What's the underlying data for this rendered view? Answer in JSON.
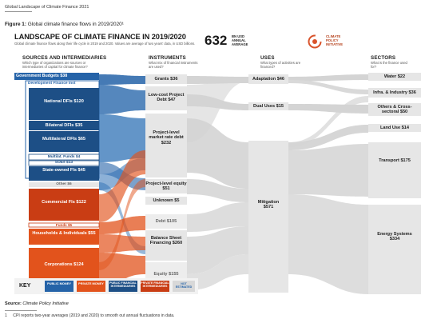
{
  "doc": {
    "running_header": "Global Landscape of Climate Finance 2021",
    "figure_label": "Figure 1:",
    "figure_caption": "Global climate finance flows in 2019/2020¹",
    "source_label": "Source:",
    "source_text": "Climate Policy Initiative",
    "footnote_number": "1",
    "footnote_text": "CPI reports two-year averages (2019 and 2020) to smooth out annual fluctuations in data."
  },
  "diagram": {
    "title": "LANDSCAPE OF CLIMATE FINANCE IN 2019/2020",
    "subtitle": "Global climate finance flows along their life cycle in 2019 and 2020. Values are average of two years' data, in USD billions.",
    "total_value": "632",
    "total_caption": "BN USD ANNUAL AVERAGE",
    "logo_text": "CLIMATE POLICY INITIATIVE",
    "columns": {
      "sources": {
        "title": "SOURCES AND INTERMEDIARIES",
        "desc": "Which type of organizations are sources or intermediaries of capital for climate finance?"
      },
      "instruments": {
        "title": "INSTRUMENTS",
        "desc": "What mix of financial instruments are used?"
      },
      "uses": {
        "title": "USES",
        "desc": "What types of activities are financed?"
      },
      "sectors": {
        "title": "SECTORS",
        "desc": "What is the finance used for?"
      }
    },
    "sources": {
      "gov": "Government Budgets $38",
      "dfi_group": "Development Finance Inst",
      "national_dfis": "National DFIs $120",
      "bilateral_dfis": "Bilateral DFIs $35",
      "multilateral_dfis": "Multilateral DFIs $65",
      "multilat_funds": "Multilat. Funds $4",
      "soes": "SOEs $13",
      "state_fis": "State-owned FIs $45",
      "other": "Other $6",
      "commercial_fis": "Commercial FIs $122",
      "funds": "Funds $5",
      "households": "Households & Individuals $55",
      "corporations": "Corporations $124"
    },
    "instruments": {
      "grants": "Grants $36",
      "low_cost": "Low-cost Project Debt $47",
      "market_debt": "Project-level market rate debt $232",
      "project_equity": "Project-level equity $51",
      "unknown": "Unknown $5",
      "debt": "Debt $105",
      "balance_sheet": "Balance Sheet Financing $260",
      "equity": "Equity $155"
    },
    "uses": {
      "adaptation": "Adaptation $46",
      "dual": "Dual Uses $15",
      "mitigation": "Mitigation $571"
    },
    "sectors": {
      "water": "Water $22",
      "infra": "Infra. & Industry $36",
      "others": "Others & Cross-sectoral $50",
      "land": "Land Use $14",
      "transport": "Transport $175",
      "energy": "Energy Systems $334"
    },
    "key": {
      "title": "KEY",
      "items": [
        "PUBLIC MONEY",
        "PRIVATE MONEY",
        "PUBLIC FINANCIAL INTERMEDIARIES",
        "PRIVATE FINANCIAL INTERMEDIARIES",
        "NOT ESTIMATED"
      ]
    },
    "colors": {
      "public": "#2563a8",
      "public_inter": "#1d4f86",
      "private": "#e2531c",
      "private_inter": "#c93d14",
      "gray_flow": "#d4d4d4",
      "gray_node": "#e6e6e6"
    }
  }
}
